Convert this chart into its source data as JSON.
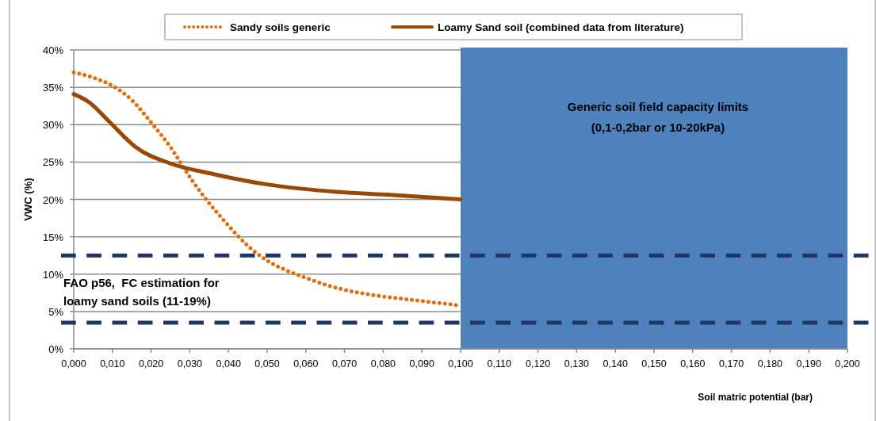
{
  "chart_data": {
    "type": "line",
    "xlabel": "Soil matric potential (bar)",
    "ylabel": "VWC (%)",
    "xlim": [
      0,
      0.2
    ],
    "ylim": [
      0,
      40
    ],
    "xticks": [
      {
        "value": 0,
        "label": "0,000"
      },
      {
        "value": 0.01,
        "label": "0,010"
      },
      {
        "value": 0.02,
        "label": "0,020"
      },
      {
        "value": 0.03,
        "label": "0,030"
      },
      {
        "value": 0.04,
        "label": "0,040"
      },
      {
        "value": 0.05,
        "label": "0,050"
      },
      {
        "value": 0.06,
        "label": "0,060"
      },
      {
        "value": 0.07,
        "label": "0,070"
      },
      {
        "value": 0.08,
        "label": "0,080"
      },
      {
        "value": 0.09,
        "label": "0,090"
      },
      {
        "value": 0.1,
        "label": "0,100"
      },
      {
        "value": 0.11,
        "label": "0,110"
      },
      {
        "value": 0.12,
        "label": "0,120"
      },
      {
        "value": 0.13,
        "label": "0,130"
      },
      {
        "value": 0.14,
        "label": "0,140"
      },
      {
        "value": 0.15,
        "label": "0,150"
      },
      {
        "value": 0.16,
        "label": "0,160"
      },
      {
        "value": 0.17,
        "label": "0,170"
      },
      {
        "value": 0.18,
        "label": "0,180"
      },
      {
        "value": 0.19,
        "label": "0,190"
      },
      {
        "value": 0.2,
        "label": "0,200"
      }
    ],
    "yticks": [
      {
        "value": 0,
        "label": "0%"
      },
      {
        "value": 5,
        "label": "5%"
      },
      {
        "value": 10,
        "label": "10%"
      },
      {
        "value": 15,
        "label": "15%"
      },
      {
        "value": 20,
        "label": "20%"
      },
      {
        "value": 25,
        "label": "25%"
      },
      {
        "value": 30,
        "label": "30%"
      },
      {
        "value": 35,
        "label": "35%"
      },
      {
        "value": 40,
        "label": "40%"
      }
    ],
    "grid": "y",
    "legend": "top",
    "series": [
      {
        "name": "Sandy soils generic",
        "color": "#e46c0a",
        "line_style": "dotted",
        "x": [
          0,
          0.005,
          0.01,
          0.015,
          0.02,
          0.025,
          0.03,
          0.035,
          0.04,
          0.045,
          0.05,
          0.055,
          0.06,
          0.065,
          0.07,
          0.075,
          0.08,
          0.085,
          0.09,
          0.095,
          0.1
        ],
        "values": [
          37,
          36.3,
          35.2,
          33.3,
          30.3,
          27,
          23,
          19.5,
          16.5,
          13.8,
          11.8,
          10.5,
          9.5,
          8.6,
          7.9,
          7.4,
          7,
          6.7,
          6.4,
          6.1,
          5.8
        ]
      },
      {
        "name": "Loamy Sand soil (combined data from literature)",
        "color": "#984807",
        "line_style": "solid",
        "x": [
          0,
          0.004,
          0.009,
          0.016,
          0.025,
          0.036,
          0.05,
          0.068,
          0.082,
          0.1
        ],
        "values": [
          34.1,
          33,
          30.5,
          27,
          24.8,
          23.4,
          22,
          21,
          20.6,
          20
        ]
      }
    ],
    "ref_lines": [
      {
        "axis": "y",
        "value": 12.5,
        "color": "#1f3864",
        "line_style": "dashed"
      },
      {
        "axis": "y",
        "value": 3.5,
        "color": "#1f3864",
        "line_style": "dashed"
      }
    ],
    "bands": [
      {
        "axis": "x",
        "from": 0.1,
        "to": 0.2,
        "label": "Generic soil field capacity limits\n(0,1-0,2bar or 10-20kPa)",
        "color": "#4f81bd"
      }
    ],
    "annotations": [
      "FAO p56,  FC estimation for\nloamy sand soils (11-19%)"
    ]
  }
}
